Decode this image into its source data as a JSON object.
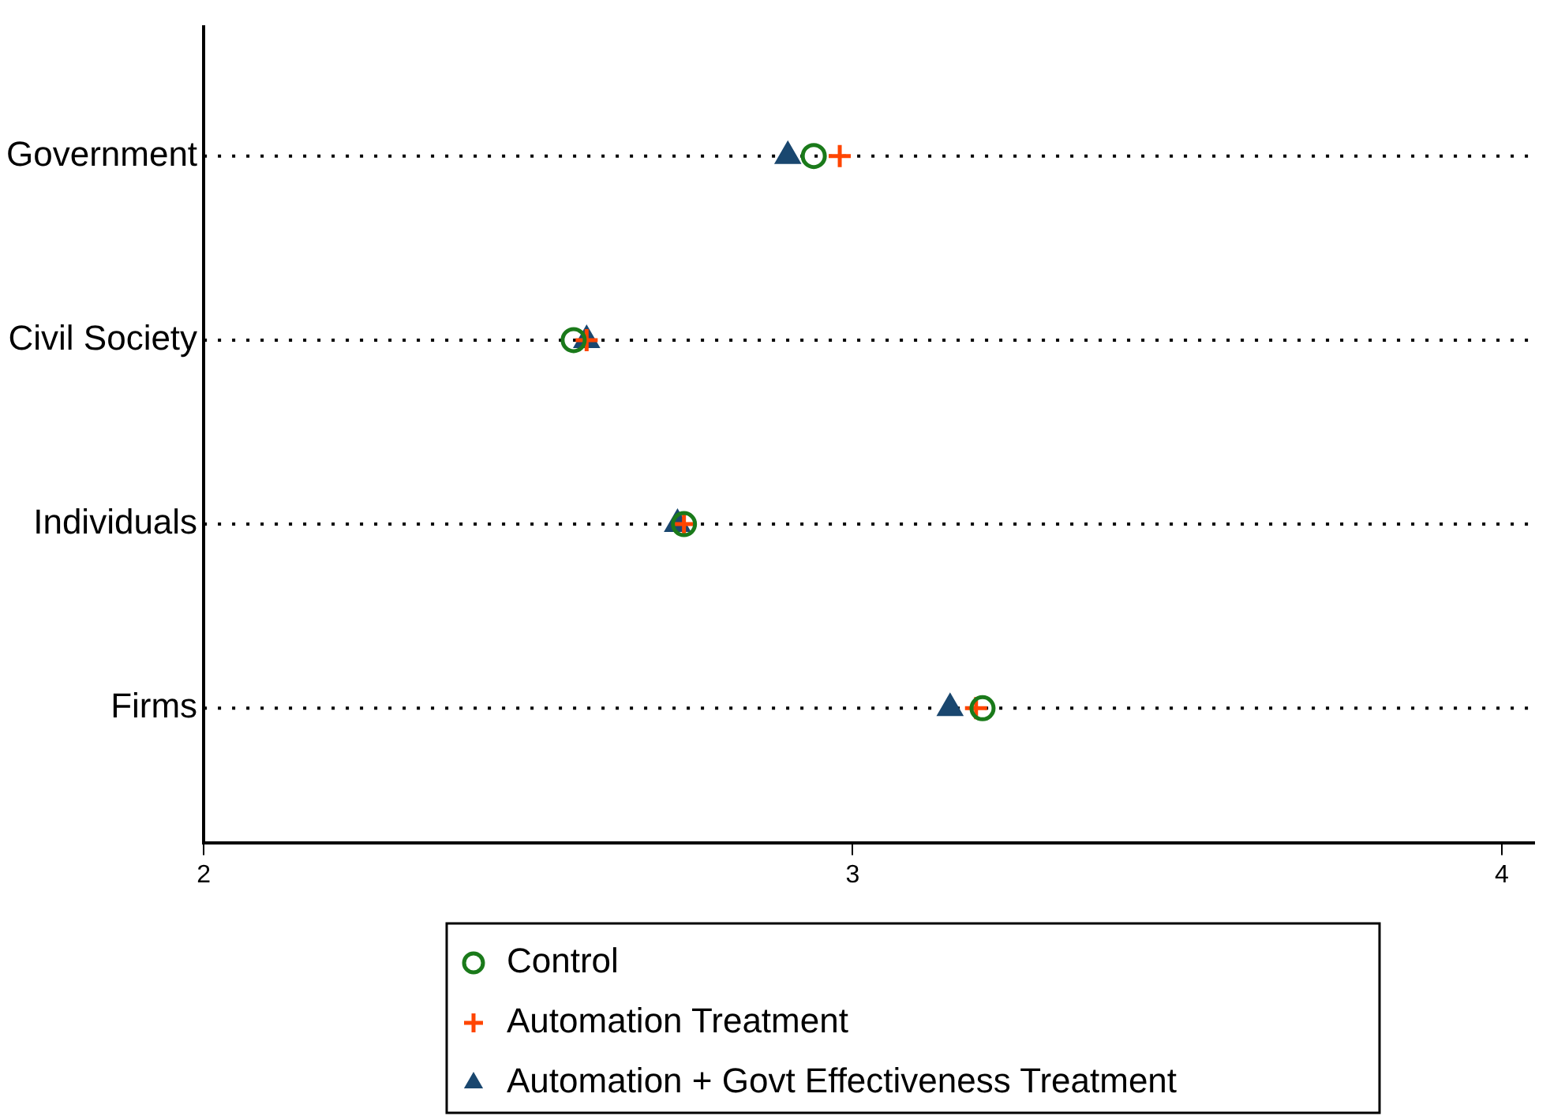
{
  "chart_data": {
    "type": "scatter",
    "categories": [
      "Government",
      "Civil Society",
      "Individuals",
      "Firms"
    ],
    "orientation": "horizontal",
    "xlim": [
      2,
      4.05
    ],
    "xticks": [
      2,
      3,
      4
    ],
    "grid": "y",
    "legend": "bottom",
    "series": [
      {
        "name": "Control",
        "color": "#1a7a1a",
        "marker": "circle",
        "values": [
          2.94,
          2.57,
          2.74,
          3.2
        ]
      },
      {
        "name": "Automation Treatment",
        "color": "#ff4500",
        "marker": "cross",
        "values": [
          2.98,
          2.59,
          2.74,
          3.19
        ]
      },
      {
        "name": "Automation + Govt Effectiveness Treatment",
        "color": "#1a476f",
        "marker": "triangle",
        "values": [
          2.9,
          2.59,
          2.73,
          3.15
        ]
      }
    ]
  }
}
